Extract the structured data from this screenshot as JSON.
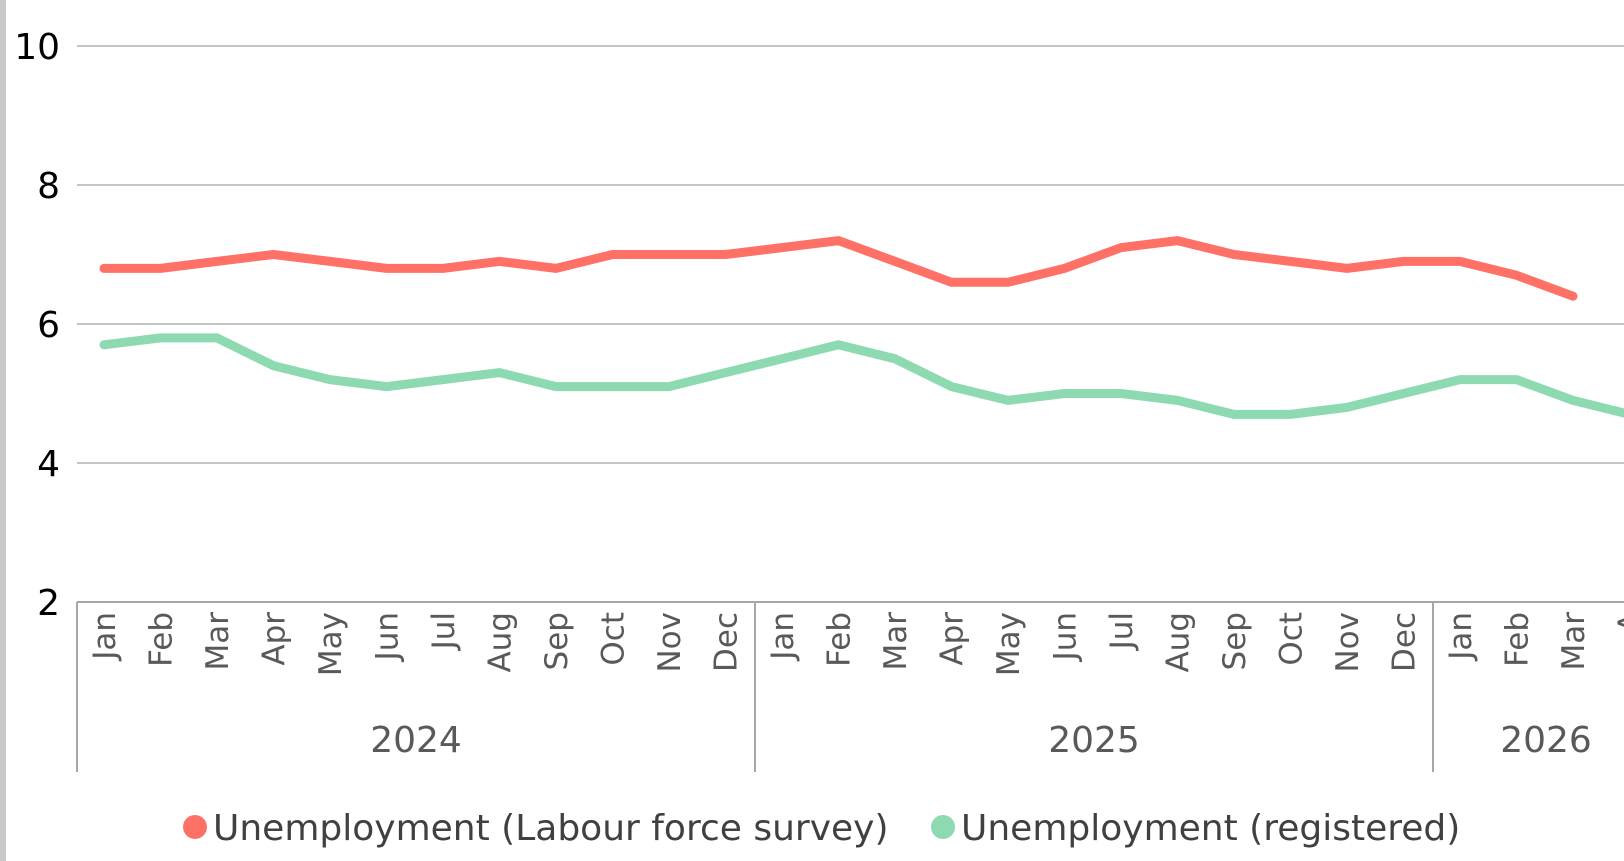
{
  "chart_data": {
    "type": "line",
    "title": "",
    "xlabel": "",
    "ylabel": "",
    "ylim": [
      2,
      10
    ],
    "yticks": [
      "10",
      "8",
      "6",
      "4",
      "2"
    ],
    "grid": true,
    "legend_position": "bottom",
    "categories": [
      "Jan",
      "Feb",
      "Mar",
      "Apr",
      "May",
      "Jun",
      "Jul",
      "Aug",
      "Sep",
      "Oct",
      "Nov",
      "Dec",
      "Jan",
      "Feb",
      "Mar",
      "Apr",
      "May",
      "Jun",
      "Jul",
      "Aug",
      "Sep",
      "Oct",
      "Nov",
      "Dec",
      "Jan",
      "Feb",
      "Mar",
      "A"
    ],
    "years": [
      {
        "label": "2024",
        "start": 0,
        "end": 12
      },
      {
        "label": "2025",
        "start": 12,
        "end": 24
      },
      {
        "label": "2026",
        "start": 24,
        "end": 28
      }
    ],
    "series": [
      {
        "name": "Unemployment (Labour force survey)",
        "color": "#ff7066",
        "values": [
          6.8,
          6.8,
          6.9,
          7.0,
          6.9,
          6.8,
          6.8,
          6.9,
          6.8,
          7.0,
          7.0,
          7.0,
          7.1,
          7.2,
          6.9,
          6.6,
          6.6,
          6.8,
          7.1,
          7.2,
          7.0,
          6.9,
          6.8,
          6.9,
          6.9,
          6.7,
          6.4,
          null
        ]
      },
      {
        "name": "Unemployment (registered)",
        "color": "#8dd9b0",
        "values": [
          5.7,
          5.8,
          5.8,
          5.4,
          5.2,
          5.1,
          5.2,
          5.3,
          5.1,
          5.1,
          5.1,
          5.3,
          5.5,
          5.7,
          5.5,
          5.1,
          4.9,
          5.0,
          5.0,
          4.9,
          4.7,
          4.7,
          4.8,
          5.0,
          5.2,
          5.2,
          4.9,
          4.7
        ]
      }
    ]
  }
}
